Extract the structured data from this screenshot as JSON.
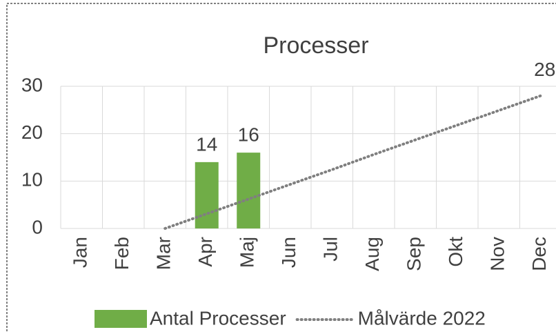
{
  "chart_data": {
    "type": "bar",
    "title": "Processer",
    "categories": [
      "Jan",
      "Feb",
      "Mar",
      "Apr",
      "Maj",
      "Jun",
      "Jul",
      "Aug",
      "Sep",
      "Okt",
      "Nov",
      "Dec"
    ],
    "series": [
      {
        "name": "Antal Processer",
        "type": "bar",
        "color": "#70ad47",
        "values": [
          null,
          null,
          null,
          14,
          16,
          null,
          null,
          null,
          null,
          null,
          null,
          null
        ]
      },
      {
        "name": "Målvärde 2022",
        "type": "line",
        "color": "#7f7f7f",
        "values": [
          null,
          null,
          0,
          3.1,
          6.2,
          9.3,
          12.4,
          15.6,
          18.7,
          21.8,
          24.9,
          28
        ]
      }
    ],
    "ylim": [
      0,
      30
    ],
    "yticks": [
      0,
      10,
      20,
      30
    ],
    "grid": true,
    "legend": "bottom"
  }
}
